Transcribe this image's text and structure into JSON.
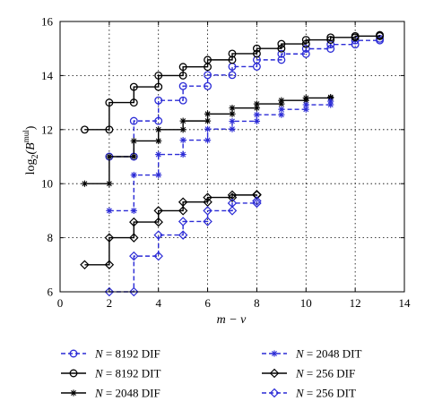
{
  "chart_data": {
    "type": "line",
    "title": "",
    "xlabel": "m − ν",
    "ylabel_base": "log",
    "ylabel_sub": "2",
    "ylabel_open": "(B",
    "ylabel_sup": "mul",
    "ylabel_close": ")",
    "xlim": [
      0,
      14
    ],
    "ylim": [
      6,
      16
    ],
    "xticks": [
      0,
      2,
      4,
      6,
      8,
      10,
      12,
      14
    ],
    "yticks": [
      6,
      8,
      10,
      12,
      14,
      16
    ],
    "grid": true,
    "legend_position": "bottom",
    "colors": {
      "blue": "#2b2bd6",
      "black": "#000000"
    },
    "series": [
      {
        "name": "N = 8192 DIF",
        "legend_lhs": "N",
        "legend_rhs": "= 8192 DIF",
        "color": "#2b2bd6",
        "dashed": true,
        "marker": "circle",
        "x": [
          2,
          3,
          4,
          5,
          6,
          7,
          8,
          9,
          10,
          11,
          12,
          13
        ],
        "y": [
          11.0,
          12.32,
          13.08,
          13.61,
          14.02,
          14.33,
          14.58,
          14.8,
          14.99,
          15.15,
          15.3,
          15.36
        ]
      },
      {
        "name": "N = 8192 DIT",
        "legend_lhs": "N",
        "legend_rhs": "= 8192 DIT",
        "color": "#000000",
        "dashed": false,
        "marker": "circle",
        "x": [
          1,
          2,
          3,
          4,
          5,
          6,
          7,
          8,
          9,
          10,
          11,
          12,
          13
        ],
        "y": [
          12.0,
          13.0,
          13.58,
          14.0,
          14.32,
          14.58,
          14.81,
          15.0,
          15.17,
          15.32,
          15.41,
          15.46,
          15.5
        ]
      },
      {
        "name": "N = 2048 DIF",
        "legend_lhs": "N",
        "legend_rhs": "= 2048 DIF",
        "color": "#000000",
        "dashed": false,
        "marker": "star",
        "x": [
          1,
          2,
          3,
          4,
          5,
          6,
          7,
          8,
          9,
          10,
          11
        ],
        "y": [
          10.0,
          11.0,
          11.58,
          12.0,
          12.32,
          12.58,
          12.8,
          12.95,
          13.08,
          13.17,
          13.2
        ]
      },
      {
        "name": "N = 2048 DIT",
        "legend_lhs": "N",
        "legend_rhs": "= 2048 DIT",
        "color": "#2b2bd6",
        "dashed": true,
        "marker": "star",
        "x": [
          2,
          3,
          4,
          5,
          6,
          7,
          8,
          9,
          10,
          11
        ],
        "y": [
          9.0,
          10.32,
          11.08,
          11.61,
          12.02,
          12.31,
          12.55,
          12.75,
          12.92,
          13.05
        ]
      },
      {
        "name": "N = 256 DIF",
        "legend_lhs": "N",
        "legend_rhs": "= 256 DIF",
        "color": "#000000",
        "dashed": false,
        "marker": "diamond",
        "x": [
          1,
          2,
          3,
          4,
          5,
          6,
          7,
          8
        ],
        "y": [
          7.0,
          8.0,
          8.58,
          9.0,
          9.32,
          9.49,
          9.58,
          9.6
        ]
      },
      {
        "name": "N = 256 DIT",
        "legend_lhs": "N",
        "legend_rhs": "= 256 DIT",
        "color": "#2b2bd6",
        "dashed": true,
        "marker": "diamond",
        "x": [
          2,
          3,
          4,
          5,
          6,
          7,
          8
        ],
        "y": [
          6.0,
          7.32,
          8.1,
          8.6,
          9.0,
          9.28,
          9.36
        ]
      }
    ]
  }
}
